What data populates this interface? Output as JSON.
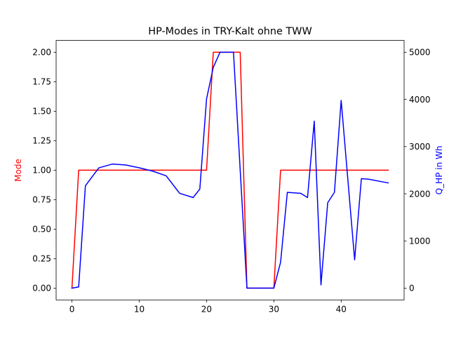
{
  "chart_data": {
    "type": "line",
    "title": "HP-Modes in TRY-Kalt ohne TWW",
    "xlabel": "",
    "xlim": [
      -2.35,
      49.35
    ],
    "x_ticks": [
      0,
      10,
      20,
      30,
      40
    ],
    "y_left": {
      "label": "Mode",
      "color": "#ff0000",
      "lim": [
        -0.1,
        2.1
      ],
      "ticks": [
        "0.00",
        "0.25",
        "0.50",
        "0.75",
        "1.00",
        "1.25",
        "1.50",
        "1.75",
        "2.00"
      ]
    },
    "y_right": {
      "label": "Q_HP in Wh",
      "color": "#0000ff",
      "lim": [
        -250,
        5250
      ],
      "ticks": [
        "0",
        "1000",
        "2000",
        "3000",
        "4000",
        "5000"
      ]
    },
    "series": [
      {
        "axis": "left",
        "color": "#ff0000",
        "x": [
          0,
          1,
          2,
          3,
          4,
          5,
          6,
          7,
          8,
          9,
          10,
          11,
          12,
          13,
          14,
          15,
          16,
          17,
          18,
          19,
          20,
          21,
          22,
          23,
          24,
          25,
          26,
          27,
          28,
          29,
          30,
          31,
          32,
          33,
          34,
          35,
          36,
          37,
          38,
          39,
          40,
          41,
          42,
          43,
          44,
          45,
          46,
          47
        ],
        "values": [
          0,
          1,
          1,
          1,
          1,
          1,
          1,
          1,
          1,
          1,
          1,
          1,
          1,
          1,
          1,
          1,
          1,
          1,
          1,
          1,
          1,
          2,
          2,
          2,
          2,
          2,
          0,
          0,
          0,
          0,
          0,
          1,
          1,
          1,
          1,
          1,
          1,
          1,
          1,
          1,
          1,
          1,
          1,
          1,
          1,
          1,
          1,
          1
        ]
      },
      {
        "axis": "right",
        "color": "#0000ff",
        "x": [
          0,
          1,
          2,
          4,
          6,
          8,
          10,
          12,
          14,
          16,
          18,
          19,
          20,
          21,
          22,
          23,
          24,
          25,
          26,
          27,
          28,
          29,
          30,
          31,
          32,
          34,
          35,
          36,
          37,
          38,
          39,
          40,
          42,
          43,
          44,
          47
        ],
        "values": [
          0,
          25,
          2170,
          2550,
          2630,
          2610,
          2550,
          2480,
          2380,
          2010,
          1920,
          2100,
          4010,
          4680,
          5000,
          5000,
          5000,
          2500,
          0,
          0,
          0,
          0,
          0,
          550,
          2030,
          2010,
          1920,
          3540,
          70,
          1810,
          2030,
          3980,
          600,
          2320,
          2310,
          2230
        ]
      }
    ]
  }
}
